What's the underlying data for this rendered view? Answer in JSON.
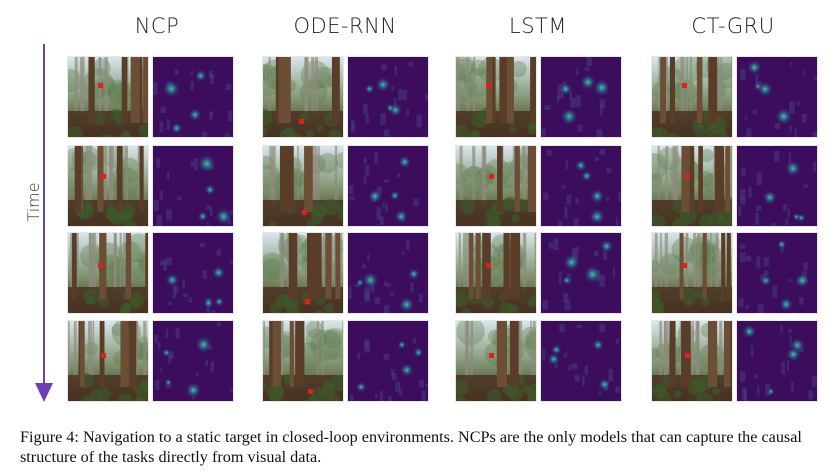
{
  "figure": {
    "models": [
      {
        "name": "NCP",
        "target": "tree"
      },
      {
        "name": "ODE-RNN",
        "target": "ground"
      },
      {
        "name": "LSTM",
        "target": "tree"
      },
      {
        "name": "CT-GRU",
        "target": "tree"
      }
    ],
    "axis_label": "Time",
    "rows": 4,
    "colors": {
      "arrow": "#6a3fb3",
      "saliency_bg": "#3b0d5c",
      "saliency_hot": "#3fe3a0",
      "target": "#e0201a"
    }
  },
  "caption": {
    "text": "Figure 4: Navigation to a static target in closed-loop environments. NCPs are the only models that can capture the causal structure of the tasks directly from visual data."
  }
}
